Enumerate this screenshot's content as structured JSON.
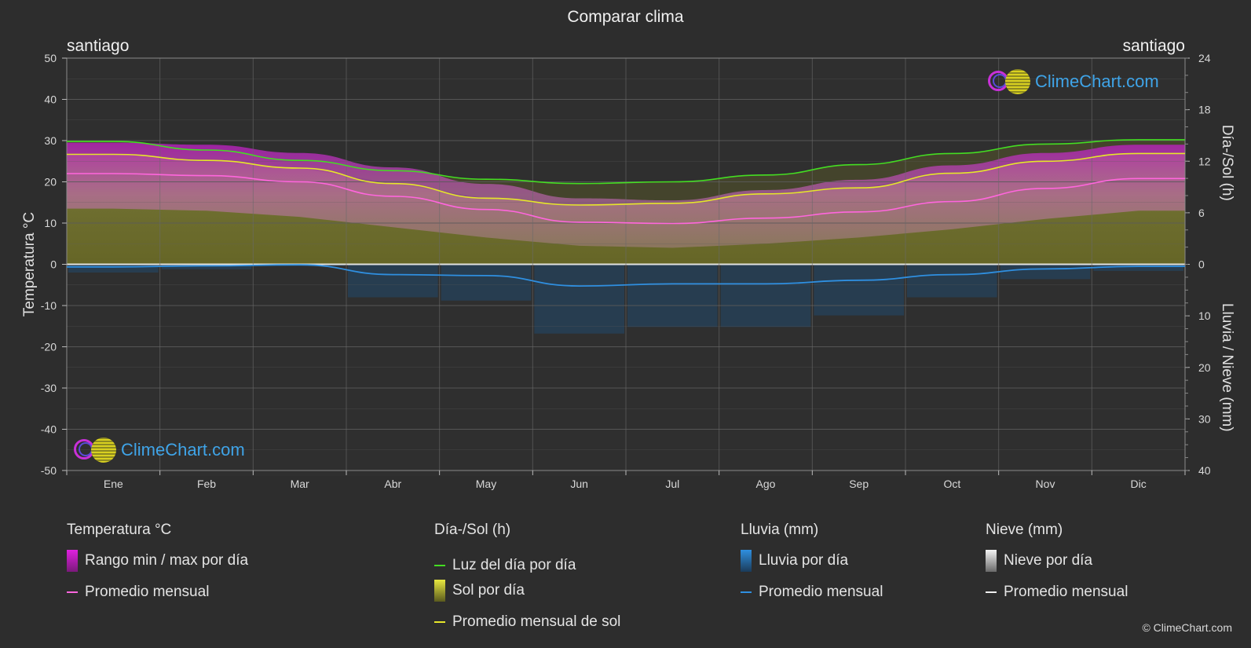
{
  "title": "Comparar clima",
  "city_left": "santiago",
  "city_right": "santiago",
  "logo_text": "ClimeChart.com",
  "copyright": "© ClimeChart.com",
  "colors": {
    "background": "#2d2d2d",
    "daylight": "#44dd22",
    "sun_avg": "#e6e62a",
    "temp_avg": "#ff66dd",
    "rain_avg": "#2f8fe0",
    "temp_range": "#d020d0",
    "sun_fill": "#7c7c2c",
    "rain_fill": "#1e4f7a"
  },
  "legend": {
    "temp": {
      "header": "Temperatura °C",
      "range": "Rango min / max por día",
      "avg": "Promedio mensual"
    },
    "sun": {
      "header": "Día-/Sol (h)",
      "daylight": "Luz del día por día",
      "sun": "Sol por día",
      "sun_avg": "Promedio mensual de sol"
    },
    "rain": {
      "header": "Lluvia (mm)",
      "rain": "Lluvia por día",
      "avg": "Promedio mensual"
    },
    "snow": {
      "header": "Nieve (mm)",
      "snow": "Nieve por día",
      "avg": "Promedio mensual"
    }
  },
  "chart_data": {
    "type": "line",
    "title": "Comparar clima",
    "categories": [
      "Ene",
      "Feb",
      "Mar",
      "Abr",
      "May",
      "Jun",
      "Jul",
      "Ago",
      "Sep",
      "Oct",
      "Nov",
      "Dic"
    ],
    "y_left": {
      "label": "Temperatura °C",
      "range": [
        -50,
        50
      ],
      "ticks": [
        50,
        40,
        30,
        20,
        10,
        0,
        -10,
        -20,
        -30,
        -40,
        -50
      ]
    },
    "y_right_top": {
      "label": "Día-/Sol (h)",
      "range": [
        0,
        24
      ],
      "ticks": [
        24,
        18,
        12,
        6,
        0
      ]
    },
    "y_right_bottom": {
      "label": "Lluvia / Nieve (mm)",
      "range": [
        0,
        40
      ],
      "ticks": [
        0,
        10,
        20,
        30,
        40
      ]
    },
    "grid": true,
    "series": [
      {
        "name": "Luz del día por día",
        "axis": "sun_h",
        "values": [
          14.3,
          13.3,
          12.1,
          10.9,
          9.9,
          9.4,
          9.6,
          10.4,
          11.6,
          12.9,
          14.0,
          14.5
        ]
      },
      {
        "name": "Promedio mensual de sol",
        "axis": "sun_h",
        "values": [
          12.8,
          12.1,
          11.2,
          9.4,
          7.7,
          6.9,
          7.1,
          8.2,
          8.9,
          10.6,
          12.0,
          12.9
        ]
      },
      {
        "name": "Promedio mensual",
        "axis": "temp_c",
        "values": [
          22.0,
          21.5,
          20.0,
          16.5,
          13.3,
          10.2,
          9.9,
          11.2,
          12.7,
          15.2,
          18.4,
          20.8
        ]
      },
      {
        "name": "Promedio mensual",
        "axis": "rain_mm",
        "values": [
          0.5,
          0.3,
          0.1,
          2.0,
          2.2,
          4.2,
          3.8,
          3.8,
          3.1,
          2.0,
          0.9,
          0.4
        ]
      },
      {
        "name": "Rango min / max por día",
        "axis": "temp_c",
        "min": [
          13.5,
          13.0,
          11.5,
          9.0,
          6.5,
          4.5,
          4.0,
          5.0,
          6.5,
          8.5,
          11.0,
          13.0
        ],
        "max": [
          29.5,
          29.0,
          27.0,
          23.5,
          19.5,
          16.0,
          15.5,
          18.0,
          20.5,
          24.0,
          27.0,
          29.0
        ]
      }
    ]
  }
}
